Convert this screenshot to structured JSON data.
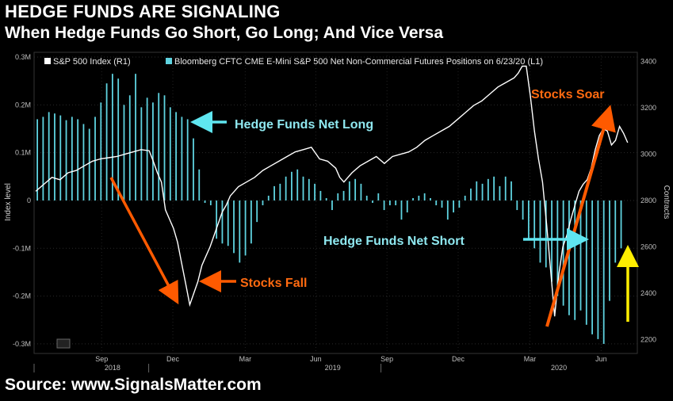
{
  "header": {
    "title": "HEDGE FUNDS ARE SIGNALING",
    "subtitle": "When Hedge Funds Go Short, Go Long; And Vice Versa"
  },
  "footer": {
    "source": "Source: www.SignalsMatter.com"
  },
  "colors": {
    "bars": "#5fd3e0",
    "line": "#ffffff",
    "arrow_orange": "#ff5a00",
    "arrow_cyan": "#5fe6f0",
    "arrow_yellow": "#ffee00",
    "label_orange": "#ff6a10",
    "label_cyan": "#8fe8f0"
  },
  "chart_data": {
    "type": "bar+line",
    "legend": {
      "line": "S&P 500 Index (R1)",
      "bars": "Bloomberg CFTC CME E-Mini S&P 500 Net Non-Commercial Futures Positions  on 6/23/20 (L1)"
    },
    "left_axis": {
      "label": "Index level",
      "ticks": [
        "0.3M",
        "0.2M",
        "0.1M",
        "0",
        "-0.1M",
        "-0.2M",
        "-0.3M"
      ],
      "range": [
        -0.32,
        0.31
      ]
    },
    "right_axis": {
      "label": "Contracts",
      "ticks": [
        "3400",
        "3200",
        "3000",
        "2800",
        "2600",
        "2400",
        "2200"
      ],
      "range": [
        2140,
        3440
      ]
    },
    "x_ticks": [
      "Sep",
      "Dec",
      "Mar",
      "Jun",
      "Sep",
      "Dec",
      "Mar",
      "Jun"
    ],
    "x_years": [
      "2018",
      "2019",
      "2020"
    ],
    "bars_series": {
      "name": "Net Non-Commercial Futures Positions",
      "values": [
        0.17,
        0.175,
        0.185,
        0.182,
        0.178,
        0.168,
        0.175,
        0.17,
        0.16,
        0.15,
        0.175,
        0.205,
        0.245,
        0.265,
        0.255,
        0.2,
        0.22,
        0.265,
        0.195,
        0.215,
        0.205,
        0.225,
        0.22,
        0.195,
        0.185,
        0.175,
        0.17,
        0.13,
        0.065,
        -0.005,
        -0.01,
        -0.08,
        -0.09,
        -0.095,
        -0.11,
        -0.13,
        -0.115,
        -0.09,
        -0.045,
        -0.01,
        0.01,
        0.03,
        0.035,
        0.05,
        0.06,
        0.065,
        0.05,
        0.045,
        0.035,
        0.02,
        0.005,
        -0.02,
        0.015,
        0.02,
        0.04,
        0.045,
        0.035,
        0.01,
        -0.005,
        0.015,
        -0.02,
        -0.01,
        -0.01,
        -0.04,
        -0.025,
        0.005,
        0.01,
        0.015,
        0.005,
        -0.01,
        -0.015,
        -0.04,
        -0.025,
        -0.015,
        0.01,
        0.025,
        0.04,
        0.035,
        0.045,
        0.05,
        0.03,
        0.05,
        0.04,
        -0.02,
        -0.04,
        -0.08,
        -0.1,
        -0.13,
        -0.14,
        -0.17,
        -0.2,
        -0.22,
        -0.24,
        -0.25,
        -0.23,
        -0.26,
        -0.28,
        -0.29,
        -0.3,
        -0.21,
        -0.13,
        -0.1
      ]
    },
    "line_series": {
      "name": "S&P 500 Index",
      "points": [
        [
          0,
          2840
        ],
        [
          2,
          2870
        ],
        [
          4,
          2900
        ],
        [
          6,
          2890
        ],
        [
          8,
          2920
        ],
        [
          10,
          2930
        ],
        [
          12,
          2950
        ],
        [
          14,
          2970
        ],
        [
          16,
          2980
        ],
        [
          18,
          2985
        ],
        [
          20,
          2990
        ],
        [
          22,
          3000
        ],
        [
          24,
          3010
        ],
        [
          26,
          3020
        ],
        [
          28,
          3015
        ],
        [
          29,
          2970
        ],
        [
          30,
          2920
        ],
        [
          31,
          2880
        ],
        [
          32,
          2760
        ],
        [
          33,
          2720
        ],
        [
          34,
          2680
        ],
        [
          35,
          2620
        ],
        [
          36,
          2530
        ],
        [
          37,
          2440
        ],
        [
          38,
          2350
        ],
        [
          39,
          2400
        ],
        [
          40,
          2450
        ],
        [
          41,
          2520
        ],
        [
          42,
          2560
        ],
        [
          43,
          2600
        ],
        [
          44,
          2650
        ],
        [
          45,
          2700
        ],
        [
          46,
          2750
        ],
        [
          47,
          2780
        ],
        [
          48,
          2820
        ],
        [
          50,
          2860
        ],
        [
          52,
          2880
        ],
        [
          54,
          2900
        ],
        [
          56,
          2930
        ],
        [
          58,
          2950
        ],
        [
          60,
          2970
        ],
        [
          62,
          2990
        ],
        [
          64,
          3010
        ],
        [
          66,
          3020
        ],
        [
          68,
          3030
        ],
        [
          70,
          2980
        ],
        [
          72,
          2970
        ],
        [
          74,
          2940
        ],
        [
          75,
          2900
        ],
        [
          76,
          2880
        ],
        [
          78,
          2920
        ],
        [
          80,
          2950
        ],
        [
          82,
          2970
        ],
        [
          84,
          2990
        ],
        [
          86,
          2960
        ],
        [
          88,
          2990
        ],
        [
          90,
          3000
        ],
        [
          92,
          3010
        ],
        [
          94,
          3030
        ],
        [
          96,
          3060
        ],
        [
          98,
          3080
        ],
        [
          100,
          3100
        ],
        [
          102,
          3120
        ],
        [
          104,
          3150
        ],
        [
          106,
          3180
        ],
        [
          108,
          3210
        ],
        [
          110,
          3230
        ],
        [
          112,
          3260
        ],
        [
          114,
          3290
        ],
        [
          116,
          3310
        ],
        [
          117,
          3320
        ],
        [
          118,
          3330
        ],
        [
          119,
          3350
        ],
        [
          120,
          3380
        ],
        [
          121,
          3380
        ],
        [
          122,
          3250
        ],
        [
          123,
          3100
        ],
        [
          124,
          2980
        ],
        [
          125,
          2880
        ],
        [
          126,
          2700
        ],
        [
          127,
          2500
        ],
        [
          128,
          2300
        ],
        [
          129,
          2480
        ],
        [
          130,
          2600
        ],
        [
          131,
          2650
        ],
        [
          132,
          2720
        ],
        [
          133,
          2780
        ],
        [
          134,
          2840
        ],
        [
          135,
          2870
        ],
        [
          136,
          2890
        ],
        [
          137,
          2940
        ],
        [
          138,
          3020
        ],
        [
          139,
          3080
        ],
        [
          140,
          3110
        ],
        [
          141,
          3100
        ],
        [
          142,
          3040
        ],
        [
          143,
          3060
        ],
        [
          144,
          3120
        ],
        [
          145,
          3090
        ],
        [
          146,
          3050
        ]
      ],
      "x_max": 146
    },
    "bar_count": 102
  },
  "annotations": {
    "net_long": "Hedge Funds Net Long",
    "net_short": "Hedge Funds Net Short",
    "stocks_fall": "Stocks Fall",
    "stocks_soar": "Stocks Soar"
  }
}
